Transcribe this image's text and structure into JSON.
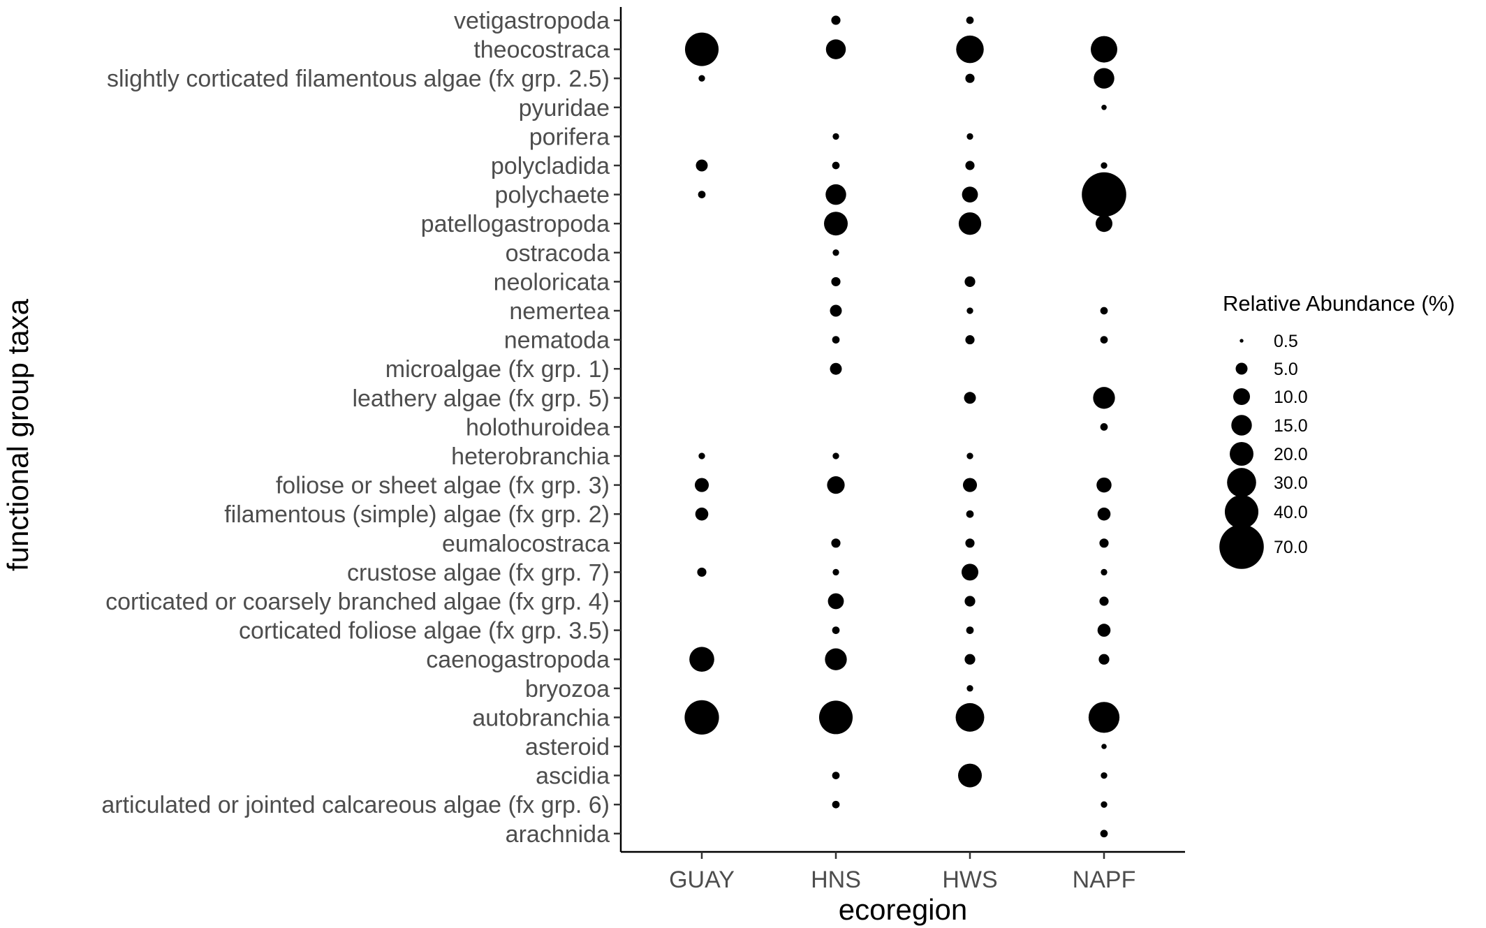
{
  "chart_data": {
    "type": "scatter",
    "xlabel": "ecoregion",
    "ylabel": "functional group taxa",
    "x_categories": [
      "GUAY",
      "HNS",
      "HWS",
      "NAPF"
    ],
    "y_categories_top_to_bottom": [
      "vetigastropoda",
      "theocostraca",
      "slightly corticated filamentous algae (fx grp. 2.5)",
      "pyuridae",
      "porifera",
      "polycladida",
      "polychaete",
      "patellogastropoda",
      "ostracoda",
      "neoloricata",
      "nemertea",
      "nematoda",
      "microalgae (fx grp. 1)",
      "leathery algae (fx grp. 5)",
      "holothuroidea",
      "heterobranchia",
      "foliose or sheet algae (fx grp. 3)",
      "filamentous (simple) algae (fx grp. 2)",
      "eumalocostraca",
      "crustose algae (fx grp. 7)",
      "corticated or coarsely branched algae (fx grp. 4)",
      "corticated foliose algae (fx grp. 3.5)",
      "caenogastropoda",
      "bryozoa",
      "autobranchia",
      "asteroid",
      "ascidia",
      "articulated or jointed calcareous algae (fx grp. 6)",
      "arachnida"
    ],
    "size_legend": {
      "title": "Relative Abundance (%)",
      "values": [
        0.5,
        5.0,
        10.0,
        15.0,
        20.0,
        30.0,
        40.0,
        70.0
      ],
      "labels": [
        "0.5",
        "5.0",
        "10.0",
        "15.0",
        "20.0",
        "30.0",
        "40.0",
        "70.0"
      ]
    },
    "points": [
      {
        "x": "HNS",
        "y": "vetigastropoda",
        "value": 3
      },
      {
        "x": "HWS",
        "y": "vetigastropoda",
        "value": 2
      },
      {
        "x": "GUAY",
        "y": "theocostraca",
        "value": 40
      },
      {
        "x": "HNS",
        "y": "theocostraca",
        "value": 14
      },
      {
        "x": "HWS",
        "y": "theocostraca",
        "value": 27
      },
      {
        "x": "NAPF",
        "y": "theocostraca",
        "value": 25
      },
      {
        "x": "GUAY",
        "y": "slightly corticated filamentous algae (fx grp. 2.5)",
        "value": 1.5
      },
      {
        "x": "HWS",
        "y": "slightly corticated filamentous algae (fx grp. 2.5)",
        "value": 3
      },
      {
        "x": "NAPF",
        "y": "slightly corticated filamentous algae (fx grp. 2.5)",
        "value": 15
      },
      {
        "x": "NAPF",
        "y": "pyuridae",
        "value": 1
      },
      {
        "x": "HNS",
        "y": "porifera",
        "value": 1.5
      },
      {
        "x": "HWS",
        "y": "porifera",
        "value": 1.5
      },
      {
        "x": "GUAY",
        "y": "polycladida",
        "value": 5
      },
      {
        "x": "HNS",
        "y": "polycladida",
        "value": 2
      },
      {
        "x": "HWS",
        "y": "polycladida",
        "value": 3
      },
      {
        "x": "NAPF",
        "y": "polycladida",
        "value": 1.5
      },
      {
        "x": "GUAY",
        "y": "polychaete",
        "value": 2
      },
      {
        "x": "HNS",
        "y": "polychaete",
        "value": 15
      },
      {
        "x": "HWS",
        "y": "polychaete",
        "value": 9
      },
      {
        "x": "NAPF",
        "y": "polychaete",
        "value": 70
      },
      {
        "x": "HNS",
        "y": "patellogastropoda",
        "value": 20
      },
      {
        "x": "HWS",
        "y": "patellogastropoda",
        "value": 18
      },
      {
        "x": "NAPF",
        "y": "patellogastropoda",
        "value": 10
      },
      {
        "x": "HNS",
        "y": "ostracoda",
        "value": 1.5
      },
      {
        "x": "HNS",
        "y": "neoloricata",
        "value": 3
      },
      {
        "x": "HWS",
        "y": "neoloricata",
        "value": 4
      },
      {
        "x": "HNS",
        "y": "nemertea",
        "value": 5
      },
      {
        "x": "HWS",
        "y": "nemertea",
        "value": 1.5
      },
      {
        "x": "NAPF",
        "y": "nemertea",
        "value": 2
      },
      {
        "x": "HNS",
        "y": "nematoda",
        "value": 2
      },
      {
        "x": "HWS",
        "y": "nematoda",
        "value": 3
      },
      {
        "x": "NAPF",
        "y": "nematoda",
        "value": 2
      },
      {
        "x": "HNS",
        "y": "microalgae (fx grp. 1)",
        "value": 5
      },
      {
        "x": "HWS",
        "y": "leathery algae (fx grp. 5)",
        "value": 5
      },
      {
        "x": "NAPF",
        "y": "leathery algae (fx grp. 5)",
        "value": 17
      },
      {
        "x": "NAPF",
        "y": "holothuroidea",
        "value": 2
      },
      {
        "x": "GUAY",
        "y": "heterobranchia",
        "value": 1.5
      },
      {
        "x": "HNS",
        "y": "heterobranchia",
        "value": 1.5
      },
      {
        "x": "HWS",
        "y": "heterobranchia",
        "value": 1.5
      },
      {
        "x": "GUAY",
        "y": "foliose or sheet algae (fx grp. 3)",
        "value": 7
      },
      {
        "x": "HNS",
        "y": "foliose or sheet algae (fx grp. 3)",
        "value": 11
      },
      {
        "x": "HWS",
        "y": "foliose or sheet algae (fx grp. 3)",
        "value": 7
      },
      {
        "x": "NAPF",
        "y": "foliose or sheet algae (fx grp. 3)",
        "value": 8
      },
      {
        "x": "GUAY",
        "y": "filamentous (simple) algae (fx grp. 2)",
        "value": 6
      },
      {
        "x": "HWS",
        "y": "filamentous (simple) algae (fx grp. 2)",
        "value": 2
      },
      {
        "x": "NAPF",
        "y": "filamentous (simple) algae (fx grp. 2)",
        "value": 6
      },
      {
        "x": "HNS",
        "y": "eumalocostraca",
        "value": 3
      },
      {
        "x": "HWS",
        "y": "eumalocostraca",
        "value": 3
      },
      {
        "x": "NAPF",
        "y": "eumalocostraca",
        "value": 3
      },
      {
        "x": "GUAY",
        "y": "crustose algae (fx grp. 7)",
        "value": 3
      },
      {
        "x": "HNS",
        "y": "crustose algae (fx grp. 7)",
        "value": 1.5
      },
      {
        "x": "HWS",
        "y": "crustose algae (fx grp. 7)",
        "value": 10
      },
      {
        "x": "NAPF",
        "y": "crustose algae (fx grp. 7)",
        "value": 1.5
      },
      {
        "x": "HNS",
        "y": "corticated or coarsely branched algae (fx grp. 4)",
        "value": 9
      },
      {
        "x": "HWS",
        "y": "corticated or coarsely branched algae (fx grp. 4)",
        "value": 4
      },
      {
        "x": "NAPF",
        "y": "corticated or coarsely branched algae (fx grp. 4)",
        "value": 3
      },
      {
        "x": "HNS",
        "y": "corticated foliose algae (fx grp. 3.5)",
        "value": 2
      },
      {
        "x": "HWS",
        "y": "corticated foliose algae (fx grp. 3.5)",
        "value": 2
      },
      {
        "x": "NAPF",
        "y": "corticated foliose algae (fx grp. 3.5)",
        "value": 6
      },
      {
        "x": "GUAY",
        "y": "caenogastropoda",
        "value": 22
      },
      {
        "x": "HNS",
        "y": "caenogastropoda",
        "value": 17
      },
      {
        "x": "HWS",
        "y": "caenogastropoda",
        "value": 4
      },
      {
        "x": "NAPF",
        "y": "caenogastropoda",
        "value": 4
      },
      {
        "x": "HWS",
        "y": "bryozoa",
        "value": 1.5
      },
      {
        "x": "GUAY",
        "y": "autobranchia",
        "value": 42
      },
      {
        "x": "HNS",
        "y": "autobranchia",
        "value": 40
      },
      {
        "x": "HWS",
        "y": "autobranchia",
        "value": 29
      },
      {
        "x": "NAPF",
        "y": "autobranchia",
        "value": 34
      },
      {
        "x": "NAPF",
        "y": "asteroid",
        "value": 1
      },
      {
        "x": "HNS",
        "y": "ascidia",
        "value": 2
      },
      {
        "x": "HWS",
        "y": "ascidia",
        "value": 20
      },
      {
        "x": "NAPF",
        "y": "ascidia",
        "value": 1.5
      },
      {
        "x": "HNS",
        "y": "articulated or jointed calcareous algae (fx grp. 6)",
        "value": 2
      },
      {
        "x": "NAPF",
        "y": "articulated or jointed calcareous algae (fx grp. 6)",
        "value": 1.5
      },
      {
        "x": "NAPF",
        "y": "arachnida",
        "value": 2
      }
    ],
    "grid": false,
    "legend_position": "right",
    "point_color": "#000000"
  }
}
